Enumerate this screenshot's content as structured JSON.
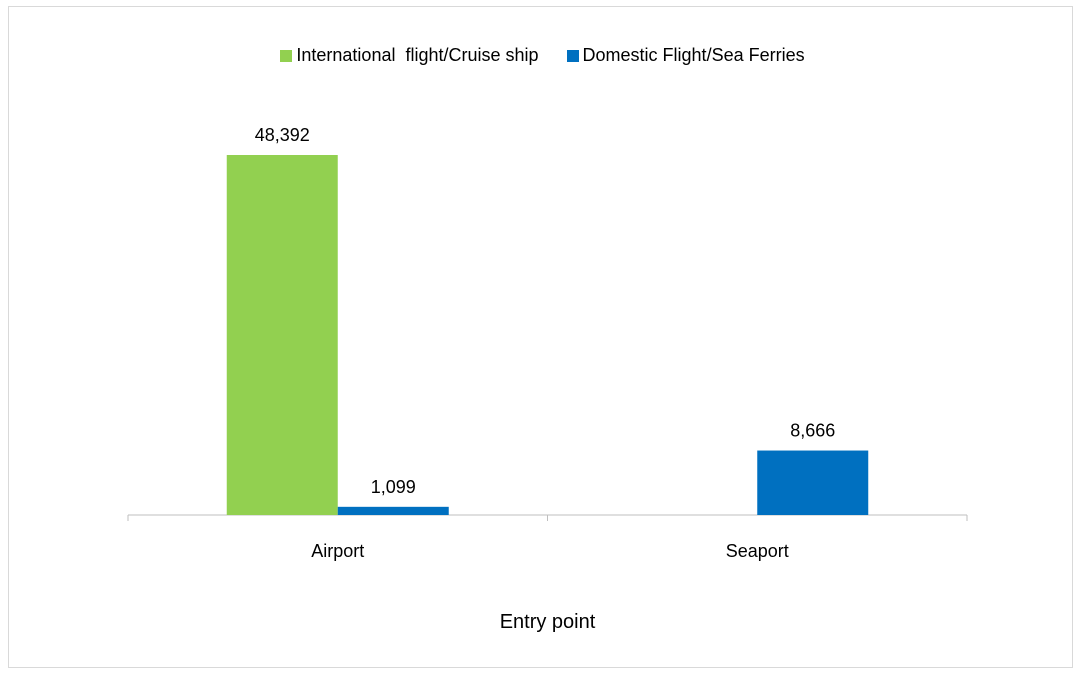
{
  "chart_data": {
    "type": "bar",
    "title": "",
    "xlabel": "Entry point",
    "ylabel": "",
    "categories": [
      "Airport",
      "Seaport"
    ],
    "series": [
      {
        "name": "International  flight/Cruise ship",
        "values": [
          48392,
          null
        ],
        "labels": [
          "48,392",
          ""
        ],
        "color": "#92d050"
      },
      {
        "name": "Domestic Flight/Sea Ferries",
        "values": [
          1099,
          8666
        ],
        "labels": [
          "1,099",
          "8,666"
        ],
        "color": "#0070c0"
      }
    ],
    "ylim": [
      0,
      50000
    ],
    "grid": false,
    "legend_position": "top"
  }
}
